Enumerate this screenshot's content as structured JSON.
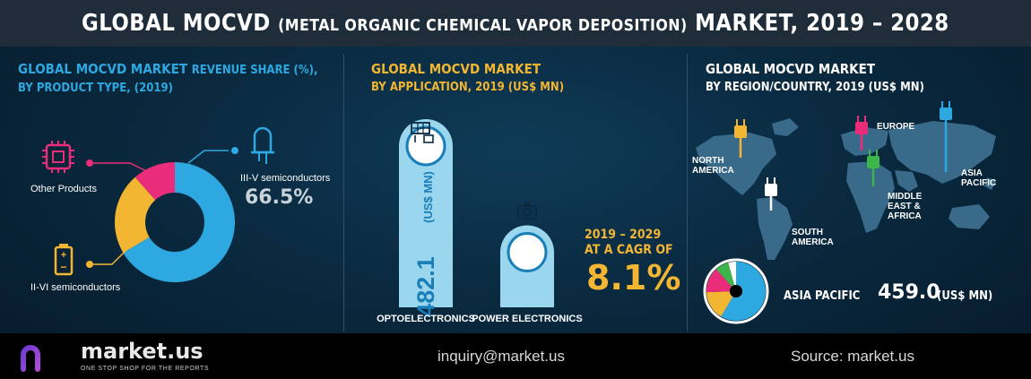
{
  "header": {
    "title_part1": "GLOBAL MOCVD",
    "title_part2": "(METAL ORGANIC CHEMICAL VAPOR DEPOSITION)",
    "title_part3": "MARKET, 2019 – 2028"
  },
  "product_panel": {
    "title_line1_a": "GLOBAL MOCVD MARKET",
    "title_line1_b": "REVENUE SHARE (%),",
    "title_line2": "BY PRODUCT TYPE, (2019)",
    "big_value": "66.5%"
  },
  "application_panel": {
    "title_line1": "GLOBAL MOCVD MARKET",
    "title_line2": "BY APPLICATION, 2019 (US$ MN)",
    "opto_value": "482.1",
    "opto_unit": "(US$ MN)",
    "cagr_line1": "2019 – 2029",
    "cagr_line2": "AT A CAGR OF",
    "cagr_value": "8.1%"
  },
  "region_panel": {
    "title_line1": "GLOBAL MOCVD MARKET",
    "title_line2": "BY REGION/COUNTRY, 2019 (US$ MN)",
    "region_labels": {
      "north_america": [
        "NORTH",
        "AMERICA"
      ],
      "europe": [
        "EUROPE"
      ],
      "asia_pacific": [
        "ASIA",
        "PACIFIC"
      ],
      "south_america": [
        "SOUTH",
        "AMERICA"
      ],
      "mea": [
        "MIDDLE",
        "EAST &",
        "AFRICA"
      ]
    },
    "highlight_label": "ASIA PACIFIC",
    "highlight_value": "459.0",
    "highlight_unit": "(US$ MN)"
  },
  "footer": {
    "logo_name": "market.us",
    "logo_tagline": "ONE STOP SHOP FOR THE REPORTS",
    "email": "inquiry@market.us",
    "source": "Source: market.us"
  },
  "colors": {
    "blue": "#2ea8e0",
    "yellow": "#f2b632",
    "pink": "#ea2d7a",
    "green": "#3cb54a",
    "light_blue": "#9ad6ee",
    "title_blue": "#2ea8e0",
    "title_orange": "#f2b632"
  },
  "chart_data": [
    {
      "type": "pie",
      "categories": [
        "III-V semiconductors",
        "II-VI semiconductors",
        "Other Products"
      ],
      "values": [
        66.5,
        22.0,
        11.5
      ],
      "colors": [
        "#2ea8e0",
        "#f2b632",
        "#ea2d7a"
      ],
      "title": "GLOBAL MOCVD MARKET REVENUE SHARE (%), BY PRODUCT TYPE, (2019)"
    },
    {
      "type": "bar",
      "categories": [
        "OPTOELECTRONICS",
        "POWER ELECTRONICS"
      ],
      "values": [
        482.1,
        210
      ],
      "title": "GLOBAL MOCVD MARKET BY APPLICATION, 2019 (US$ MN)",
      "ylabel": "(US$ MN)"
    },
    {
      "type": "pie",
      "categories": [
        "Asia Pacific",
        "North America",
        "Europe",
        "Middle East & Africa",
        "South America"
      ],
      "values": [
        55,
        15,
        13,
        7,
        4
      ],
      "colors": [
        "#2ea8e0",
        "#f2b632",
        "#ea2d7a",
        "#3cb54a",
        "#ffffff"
      ],
      "title": "GLOBAL MOCVD MARKET BY REGION/COUNTRY, 2019 (US$ MN)"
    }
  ]
}
